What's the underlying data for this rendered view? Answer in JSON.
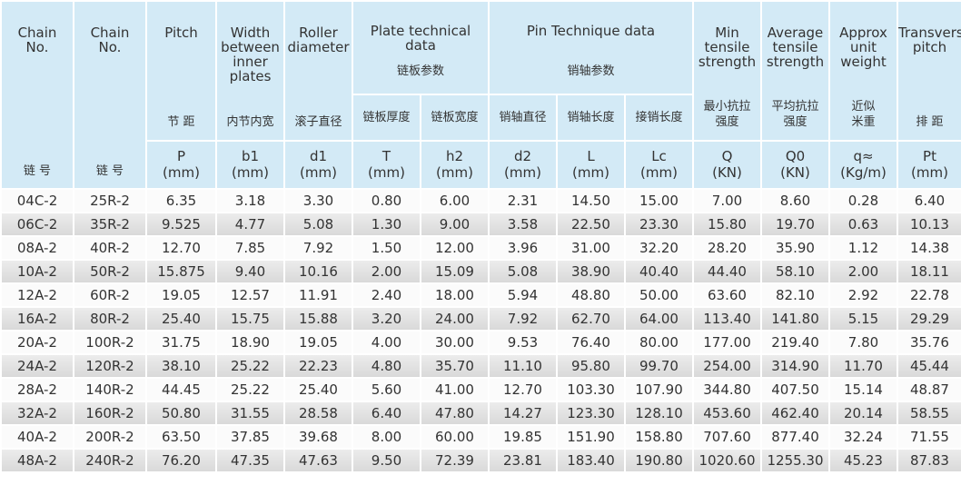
{
  "table": {
    "columns": [
      {
        "en": "Chain\nNo.",
        "zh": "链 号"
      },
      {
        "en": "Chain\nNo.",
        "zh": "链 号"
      },
      {
        "en": "Pitch",
        "zh": "节 距",
        "symbol": "P",
        "unit": "(mm)"
      },
      {
        "en": "Width\nbetween\ninner\nplates",
        "zh": "内节内宽",
        "symbol": "b1",
        "unit": "(mm)"
      },
      {
        "en": "Roller\ndiameter",
        "zh": "滚子直径",
        "symbol": "d1",
        "unit": "(mm)"
      },
      {
        "zh": "链板厚度",
        "symbol": "T",
        "unit": "(mm)"
      },
      {
        "zh": "链板宽度",
        "symbol": "h2",
        "unit": "(mm)"
      },
      {
        "zh": "销轴直径",
        "symbol": "d2",
        "unit": "(mm)"
      },
      {
        "zh": "销轴长度",
        "symbol": "L",
        "unit": "(mm)"
      },
      {
        "zh": "接销长度",
        "symbol": "Lc",
        "unit": "(mm)"
      },
      {
        "en": "Min\ntensile\nstrength",
        "zh": "最小抗拉\n强度",
        "symbol": "Q",
        "unit": "(KN)"
      },
      {
        "en": "Average\ntensile\nstrength",
        "zh": "平均抗拉\n强度",
        "symbol": "Q0",
        "unit": "(KN)"
      },
      {
        "en": "Approx\nunit\nweight",
        "zh": "近似\n米重",
        "symbol": "q≈",
        "unit": "(Kg/m)"
      },
      {
        "en": "Transverse\npitch",
        "zh": "排 距",
        "symbol": "Pt",
        "unit": "(mm)"
      }
    ],
    "groups": [
      {
        "en": "Plate technical\ndata",
        "zh": "链板参数"
      },
      {
        "en": "Pin Technique data",
        "zh": "销轴参数"
      }
    ],
    "rows": [
      [
        "04C-2",
        "25R-2",
        "6.35",
        "3.18",
        "3.30",
        "0.80",
        "6.00",
        "2.31",
        "14.50",
        "15.00",
        "7.00",
        "8.60",
        "0.28",
        "6.40"
      ],
      [
        "06C-2",
        "35R-2",
        "9.525",
        "4.77",
        "5.08",
        "1.30",
        "9.00",
        "3.58",
        "22.50",
        "23.30",
        "15.80",
        "19.70",
        "0.63",
        "10.13"
      ],
      [
        "08A-2",
        "40R-2",
        "12.70",
        "7.85",
        "7.92",
        "1.50",
        "12.00",
        "3.96",
        "31.00",
        "32.20",
        "28.20",
        "35.90",
        "1.12",
        "14.38"
      ],
      [
        "10A-2",
        "50R-2",
        "15.875",
        "9.40",
        "10.16",
        "2.00",
        "15.09",
        "5.08",
        "38.90",
        "40.40",
        "44.40",
        "58.10",
        "2.00",
        "18.11"
      ],
      [
        "12A-2",
        "60R-2",
        "19.05",
        "12.57",
        "11.91",
        "2.40",
        "18.00",
        "5.94",
        "48.80",
        "50.00",
        "63.60",
        "82.10",
        "2.92",
        "22.78"
      ],
      [
        "16A-2",
        "80R-2",
        "25.40",
        "15.75",
        "15.88",
        "3.20",
        "24.00",
        "7.92",
        "62.70",
        "64.00",
        "113.40",
        "141.80",
        "5.15",
        "29.29"
      ],
      [
        "20A-2",
        "100R-2",
        "31.75",
        "18.90",
        "19.05",
        "4.00",
        "30.00",
        "9.53",
        "76.40",
        "80.00",
        "177.00",
        "219.40",
        "7.80",
        "35.76"
      ],
      [
        "24A-2",
        "120R-2",
        "38.10",
        "25.22",
        "22.23",
        "4.80",
        "35.70",
        "11.10",
        "95.80",
        "99.70",
        "254.00",
        "314.90",
        "11.70",
        "45.44"
      ],
      [
        "28A-2",
        "140R-2",
        "44.45",
        "25.22",
        "25.40",
        "5.60",
        "41.00",
        "12.70",
        "103.30",
        "107.90",
        "344.80",
        "407.50",
        "15.14",
        "48.87"
      ],
      [
        "32A-2",
        "160R-2",
        "50.80",
        "31.55",
        "28.58",
        "6.40",
        "47.80",
        "14.27",
        "123.30",
        "128.10",
        "453.60",
        "462.40",
        "20.14",
        "58.55"
      ],
      [
        "40A-2",
        "200R-2",
        "63.50",
        "37.85",
        "39.68",
        "8.00",
        "60.00",
        "19.85",
        "151.90",
        "158.80",
        "707.60",
        "877.40",
        "32.24",
        "71.55"
      ],
      [
        "48A-2",
        "240R-2",
        "76.20",
        "47.35",
        "47.63",
        "9.50",
        "72.39",
        "23.81",
        "183.40",
        "190.80",
        "1020.60",
        "1255.30",
        "45.23",
        "87.83"
      ]
    ]
  }
}
